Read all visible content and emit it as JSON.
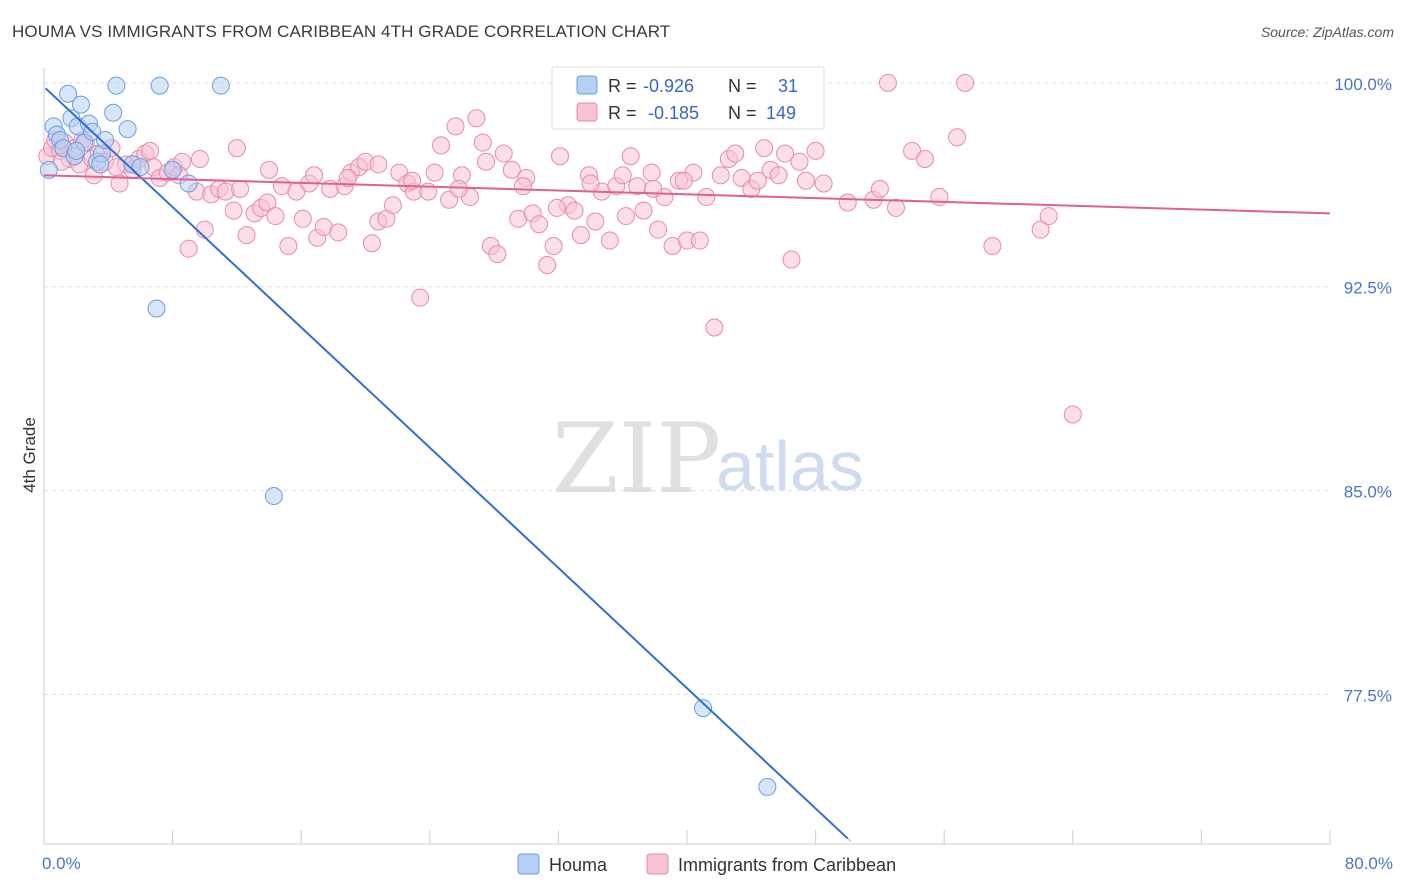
{
  "title": "HOUMA VS IMMIGRANTS FROM CARIBBEAN 4TH GRADE CORRELATION CHART",
  "source": "Source: ZipAtlas.com",
  "watermark": {
    "zip": "ZIP",
    "atlas": "atlas"
  },
  "chart_data": {
    "type": "scatter",
    "ylabel": "4th Grade",
    "xlim": [
      0,
      80
    ],
    "ylim": [
      72,
      100.4
    ],
    "x_tick_labels": [
      "0.0%",
      "80.0%"
    ],
    "y_ticks": [
      {
        "value": 100,
        "label": "100.0%"
      },
      {
        "value": 92.5,
        "label": "92.5%"
      },
      {
        "value": 85,
        "label": "85.0%"
      },
      {
        "value": 77.5,
        "label": "77.5%"
      }
    ],
    "grid": true,
    "legend_position": "top-center",
    "series": [
      {
        "name": "Houma",
        "color": "#6b9fe0",
        "fill": "#b7cff2",
        "stats": {
          "r_label": "R =",
          "r": "-0.926",
          "n_label": "N =",
          "n": "31"
        },
        "trend": {
          "x0": 0.1,
          "y0": 99.8,
          "x1": 50.0,
          "y1": 72.2,
          "color": "#2f6fd4"
        },
        "points": [
          [
            0.3,
            96.8
          ],
          [
            0.6,
            98.4
          ],
          [
            0.8,
            98.1
          ],
          [
            1.0,
            97.9
          ],
          [
            1.2,
            97.6
          ],
          [
            1.5,
            99.6
          ],
          [
            1.7,
            98.7
          ],
          [
            1.9,
            97.3
          ],
          [
            2.1,
            98.4
          ],
          [
            2.3,
            99.2
          ],
          [
            2.5,
            97.8
          ],
          [
            2.8,
            98.5
          ],
          [
            3.0,
            98.2
          ],
          [
            3.3,
            97.1
          ],
          [
            3.6,
            97.4
          ],
          [
            3.8,
            97.9
          ],
          [
            4.3,
            98.9
          ],
          [
            4.5,
            99.9
          ],
          [
            5.2,
            98.3
          ],
          [
            5.5,
            97.0
          ],
          [
            6.0,
            96.9
          ],
          [
            7.2,
            99.9
          ],
          [
            8.0,
            96.8
          ],
          [
            9.0,
            96.3
          ],
          [
            11.0,
            99.9
          ],
          [
            7.0,
            91.7
          ],
          [
            14.3,
            84.8
          ],
          [
            41.0,
            77.0
          ],
          [
            45.0,
            74.1
          ],
          [
            2.0,
            97.5
          ],
          [
            3.5,
            97.0
          ]
        ]
      },
      {
        "name": "Immigrants from Caribbean",
        "color": "#e98aab",
        "fill": "#f7c3d6",
        "stats": {
          "r_label": "R =",
          "r": "-0.185",
          "n_label": "N =",
          "n": "149"
        },
        "trend": {
          "x0": 0.0,
          "y0": 96.6,
          "x1": 80.0,
          "y1": 95.2,
          "color": "#e0618d"
        },
        "points": [
          [
            0.2,
            97.3
          ],
          [
            0.5,
            97.6
          ],
          [
            0.7,
            97.9
          ],
          [
            1.0,
            97.5
          ],
          [
            1.3,
            97.8
          ],
          [
            1.6,
            97.2
          ],
          [
            1.9,
            97.6
          ],
          [
            2.2,
            97.0
          ],
          [
            2.6,
            97.8
          ],
          [
            3.0,
            97.2
          ],
          [
            3.4,
            97.4
          ],
          [
            3.8,
            97.1
          ],
          [
            4.2,
            97.6
          ],
          [
            4.7,
            96.3
          ],
          [
            5.1,
            97.0
          ],
          [
            5.5,
            96.8
          ],
          [
            5.9,
            97.2
          ],
          [
            6.3,
            97.4
          ],
          [
            6.8,
            96.9
          ],
          [
            7.2,
            96.5
          ],
          [
            7.7,
            96.7
          ],
          [
            8.1,
            96.9
          ],
          [
            8.6,
            97.1
          ],
          [
            9.0,
            93.9
          ],
          [
            9.5,
            96.0
          ],
          [
            10.0,
            94.6
          ],
          [
            10.4,
            95.9
          ],
          [
            10.9,
            96.1
          ],
          [
            11.3,
            96.0
          ],
          [
            11.8,
            95.3
          ],
          [
            12.2,
            96.1
          ],
          [
            12.6,
            94.4
          ],
          [
            13.1,
            95.2
          ],
          [
            13.5,
            95.4
          ],
          [
            13.9,
            95.6
          ],
          [
            14.4,
            95.1
          ],
          [
            14.8,
            96.2
          ],
          [
            15.2,
            94.0
          ],
          [
            15.7,
            96.0
          ],
          [
            16.1,
            95.0
          ],
          [
            16.5,
            96.3
          ],
          [
            17.0,
            94.3
          ],
          [
            17.4,
            94.7
          ],
          [
            17.8,
            96.1
          ],
          [
            18.3,
            94.5
          ],
          [
            18.7,
            96.2
          ],
          [
            19.1,
            96.7
          ],
          [
            19.6,
            96.9
          ],
          [
            20.0,
            97.1
          ],
          [
            20.4,
            94.1
          ],
          [
            20.8,
            94.9
          ],
          [
            21.3,
            95.0
          ],
          [
            21.7,
            95.5
          ],
          [
            22.1,
            96.7
          ],
          [
            22.6,
            96.3
          ],
          [
            23.0,
            96.0
          ],
          [
            23.4,
            92.1
          ],
          [
            23.9,
            96.0
          ],
          [
            24.3,
            96.7
          ],
          [
            24.7,
            97.7
          ],
          [
            25.2,
            95.7
          ],
          [
            25.6,
            98.4
          ],
          [
            26.0,
            96.6
          ],
          [
            26.5,
            95.8
          ],
          [
            26.9,
            98.7
          ],
          [
            27.3,
            97.8
          ],
          [
            27.8,
            94.0
          ],
          [
            28.2,
            93.7
          ],
          [
            28.6,
            97.4
          ],
          [
            29.1,
            96.8
          ],
          [
            29.5,
            95.0
          ],
          [
            30.0,
            96.5
          ],
          [
            30.4,
            95.2
          ],
          [
            30.8,
            94.8
          ],
          [
            31.3,
            93.3
          ],
          [
            31.7,
            94.0
          ],
          [
            32.1,
            97.3
          ],
          [
            32.6,
            95.5
          ],
          [
            33.0,
            95.3
          ],
          [
            33.4,
            94.4
          ],
          [
            33.9,
            96.6
          ],
          [
            34.3,
            94.9
          ],
          [
            34.7,
            96.0
          ],
          [
            35.2,
            94.2
          ],
          [
            35.6,
            96.2
          ],
          [
            36.0,
            96.6
          ],
          [
            36.5,
            97.3
          ],
          [
            36.9,
            96.2
          ],
          [
            37.3,
            95.3
          ],
          [
            37.8,
            96.7
          ],
          [
            38.2,
            94.6
          ],
          [
            38.6,
            95.8
          ],
          [
            39.1,
            94.0
          ],
          [
            39.5,
            96.4
          ],
          [
            40.0,
            94.2
          ],
          [
            40.4,
            96.7
          ],
          [
            40.8,
            94.2
          ],
          [
            41.2,
            95.8
          ],
          [
            41.7,
            91.0
          ],
          [
            42.1,
            96.6
          ],
          [
            42.6,
            97.2
          ],
          [
            43.0,
            97.4
          ],
          [
            43.4,
            96.5
          ],
          [
            44.0,
            96.1
          ],
          [
            44.4,
            96.4
          ],
          [
            44.8,
            97.6
          ],
          [
            45.2,
            96.8
          ],
          [
            45.7,
            96.6
          ],
          [
            46.1,
            97.4
          ],
          [
            46.5,
            93.5
          ],
          [
            47.0,
            97.1
          ],
          [
            47.4,
            96.4
          ],
          [
            48.0,
            97.5
          ],
          [
            48.5,
            96.3
          ],
          [
            50.0,
            95.6
          ],
          [
            51.6,
            95.7
          ],
          [
            52.0,
            96.1
          ],
          [
            53.0,
            95.4
          ],
          [
            54.0,
            97.5
          ],
          [
            54.8,
            97.2
          ],
          [
            55.7,
            95.8
          ],
          [
            56.8,
            98.0
          ],
          [
            59.0,
            94.0
          ],
          [
            62.0,
            94.6
          ],
          [
            62.5,
            95.1
          ],
          [
            64.0,
            87.8
          ],
          [
            52.5,
            100.0
          ],
          [
            57.3,
            100.0
          ],
          [
            1.1,
            97.1
          ],
          [
            2.4,
            97.9
          ],
          [
            3.1,
            96.6
          ],
          [
            4.5,
            96.9
          ],
          [
            6.6,
            97.5
          ],
          [
            8.4,
            96.6
          ],
          [
            9.7,
            97.2
          ],
          [
            12.0,
            97.6
          ],
          [
            14.0,
            96.8
          ],
          [
            16.8,
            96.6
          ],
          [
            18.9,
            96.5
          ],
          [
            20.8,
            97.0
          ],
          [
            22.9,
            96.4
          ],
          [
            25.8,
            96.1
          ],
          [
            27.5,
            97.1
          ],
          [
            29.8,
            96.2
          ],
          [
            31.9,
            95.4
          ],
          [
            34.0,
            96.3
          ],
          [
            36.2,
            95.1
          ],
          [
            37.9,
            96.1
          ],
          [
            39.8,
            96.4
          ]
        ]
      }
    ]
  }
}
